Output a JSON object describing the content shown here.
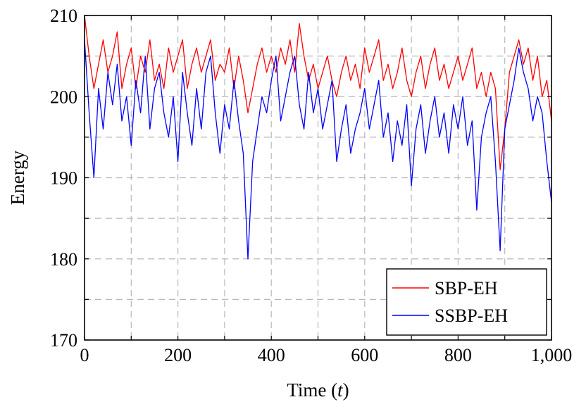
{
  "chart_data": {
    "type": "line",
    "title": "",
    "xlabel": "Time (t)",
    "xlabel_parts": {
      "prefix": "Time (",
      "var": "t",
      "suffix": ")"
    },
    "ylabel": "Energy",
    "xlim": [
      0,
      1000
    ],
    "ylim": [
      170,
      210
    ],
    "xticks": [
      0,
      200,
      400,
      600,
      800,
      1000
    ],
    "xtick_labels": [
      "0",
      "200",
      "400",
      "600",
      "800",
      "1,000"
    ],
    "yticks": [
      170,
      180,
      190,
      200,
      210
    ],
    "ytick_labels": [
      "170",
      "180",
      "190",
      "200",
      "210"
    ],
    "grid": true,
    "legend_position": "bottom-right",
    "series": [
      {
        "name": "SBP-EH",
        "color": "#ff0000",
        "x": [
          0,
          10,
          20,
          30,
          40,
          50,
          60,
          70,
          80,
          90,
          100,
          110,
          120,
          130,
          140,
          150,
          160,
          170,
          180,
          190,
          200,
          210,
          220,
          230,
          240,
          250,
          260,
          270,
          280,
          290,
          300,
          310,
          320,
          330,
          340,
          350,
          360,
          370,
          380,
          390,
          400,
          410,
          420,
          430,
          440,
          450,
          460,
          470,
          480,
          490,
          500,
          510,
          520,
          530,
          540,
          550,
          560,
          570,
          580,
          590,
          600,
          610,
          620,
          630,
          640,
          650,
          660,
          670,
          680,
          690,
          700,
          710,
          720,
          730,
          740,
          750,
          760,
          770,
          780,
          790,
          800,
          810,
          820,
          830,
          840,
          850,
          860,
          870,
          880,
          890,
          900,
          910,
          920,
          930,
          940,
          950,
          960,
          970,
          980,
          990,
          1000
        ],
        "values": [
          210,
          205,
          201,
          204,
          207,
          203,
          205,
          208,
          201,
          204,
          206,
          201,
          205,
          203,
          207,
          202,
          204,
          201,
          206,
          203,
          205,
          207,
          201,
          204,
          206,
          203,
          205,
          207,
          202,
          204,
          203,
          206,
          201,
          205,
          202,
          198,
          201,
          204,
          206,
          203,
          205,
          203,
          206,
          204,
          207,
          203,
          209,
          205,
          202,
          204,
          201,
          203,
          205,
          202,
          200,
          203,
          205,
          202,
          204,
          201,
          206,
          203,
          205,
          207,
          202,
          204,
          201,
          203,
          206,
          202,
          200,
          203,
          205,
          201,
          204,
          206,
          202,
          204,
          201,
          203,
          205,
          202,
          204,
          206,
          201,
          203,
          200,
          203,
          201,
          191,
          196,
          203,
          205,
          207,
          204,
          206,
          202,
          205,
          200,
          202,
          197
        ]
      },
      {
        "name": "SSBP-EH",
        "color": "#0000ff",
        "x": [
          0,
          10,
          20,
          30,
          40,
          50,
          60,
          70,
          80,
          90,
          100,
          110,
          120,
          130,
          140,
          150,
          160,
          170,
          180,
          190,
          200,
          210,
          220,
          230,
          240,
          250,
          260,
          270,
          280,
          290,
          300,
          310,
          320,
          330,
          340,
          350,
          360,
          370,
          380,
          390,
          400,
          410,
          420,
          430,
          440,
          450,
          460,
          470,
          480,
          490,
          500,
          510,
          520,
          530,
          540,
          550,
          560,
          570,
          580,
          590,
          600,
          610,
          620,
          630,
          640,
          650,
          660,
          670,
          680,
          690,
          700,
          710,
          720,
          730,
          740,
          750,
          760,
          770,
          780,
          790,
          800,
          810,
          820,
          830,
          840,
          850,
          860,
          870,
          880,
          890,
          900,
          910,
          920,
          930,
          940,
          950,
          960,
          970,
          980,
          990,
          1000
        ],
        "values": [
          207,
          198,
          190,
          201,
          196,
          203,
          199,
          204,
          197,
          200,
          194,
          202,
          198,
          205,
          196,
          201,
          203,
          198,
          195,
          200,
          192,
          203,
          198,
          194,
          201,
          196,
          203,
          205,
          198,
          193,
          199,
          196,
          202,
          197,
          193,
          180,
          192,
          196,
          200,
          198,
          202,
          205,
          197,
          200,
          203,
          205,
          199,
          196,
          203,
          198,
          201,
          196,
          199,
          202,
          192,
          196,
          199,
          193,
          196,
          198,
          201,
          196,
          199,
          202,
          195,
          198,
          192,
          197,
          194,
          199,
          189,
          196,
          199,
          193,
          197,
          200,
          195,
          198,
          193,
          199,
          196,
          200,
          194,
          197,
          186,
          195,
          198,
          200,
          192,
          181,
          196,
          199,
          202,
          206,
          203,
          201,
          197,
          200,
          198,
          192,
          187
        ]
      }
    ]
  }
}
